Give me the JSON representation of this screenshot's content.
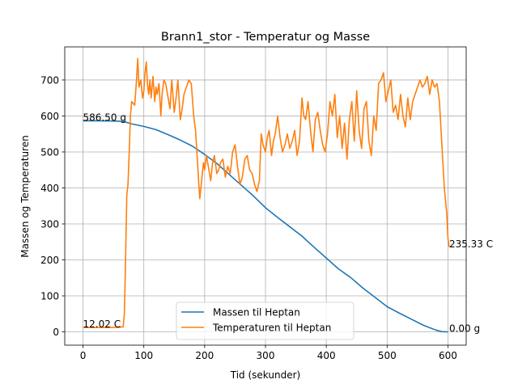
{
  "chart_data": {
    "type": "line",
    "title": "Brann1_stor - Temperatur og Masse",
    "xlabel": "Tid (sekunder)",
    "ylabel": "Massen og Temperaturen",
    "xlim": [
      -30,
      630
    ],
    "ylim": [
      -37,
      792
    ],
    "xticks": [
      0,
      100,
      200,
      300,
      400,
      500,
      600
    ],
    "yticks": [
      0,
      100,
      200,
      300,
      400,
      500,
      600,
      700
    ],
    "grid": true,
    "legend_position": "bottom-center",
    "series": [
      {
        "name": "Massen til Heptan",
        "color": "#1f77b4",
        "x": [
          0,
          20,
          40,
          60,
          70,
          80,
          100,
          120,
          140,
          160,
          180,
          200,
          220,
          240,
          260,
          280,
          300,
          320,
          340,
          360,
          380,
          400,
          420,
          440,
          460,
          480,
          500,
          520,
          540,
          560,
          580,
          590,
          600
        ],
        "y": [
          586.5,
          586.5,
          586.3,
          585.5,
          583,
          578,
          571,
          562,
          548,
          533,
          516,
          493,
          468,
          438,
          408,
          378,
          345,
          318,
          292,
          266,
          235,
          205,
          175,
          151,
          122,
          96,
          70,
          52,
          35,
          18,
          5,
          0.5,
          0
        ]
      },
      {
        "name": "Temperaturen til Heptan",
        "color": "#ff7f0e",
        "x": [
          0,
          20,
          40,
          60,
          66,
          68,
          70,
          72,
          74,
          76,
          78,
          80,
          85,
          88,
          90,
          92,
          95,
          98,
          100,
          102,
          104,
          106,
          108,
          110,
          112,
          115,
          118,
          120,
          122,
          125,
          128,
          130,
          133,
          136,
          140,
          143,
          146,
          150,
          153,
          156,
          160,
          163,
          166,
          170,
          174,
          178,
          182,
          185,
          188,
          190,
          192,
          195,
          198,
          200,
          203,
          206,
          210,
          213,
          216,
          220,
          223,
          226,
          230,
          234,
          238,
          242,
          246,
          250,
          254,
          258,
          262,
          266,
          270,
          274,
          278,
          282,
          286,
          290,
          293,
          296,
          300,
          303,
          306,
          310,
          313,
          316,
          320,
          324,
          328,
          332,
          336,
          340,
          344,
          348,
          352,
          356,
          360,
          363,
          366,
          370,
          374,
          378,
          382,
          386,
          390,
          394,
          398,
          402,
          406,
          410,
          414,
          418,
          422,
          426,
          430,
          434,
          438,
          442,
          446,
          450,
          454,
          458,
          462,
          466,
          470,
          474,
          478,
          482,
          486,
          490,
          494,
          498,
          502,
          506,
          510,
          514,
          518,
          522,
          526,
          530,
          534,
          538,
          542,
          546,
          550,
          554,
          558,
          562,
          566,
          570,
          574,
          578,
          582,
          586,
          590,
          594,
          598,
          600,
          602
        ],
        "y": [
          12.02,
          12.02,
          12.02,
          12.5,
          14,
          50,
          200,
          380,
          410,
          500,
          600,
          640,
          630,
          700,
          760,
          680,
          700,
          650,
          670,
          720,
          750,
          690,
          660,
          700,
          650,
          710,
          640,
          680,
          660,
          690,
          600,
          660,
          700,
          690,
          650,
          620,
          700,
          610,
          650,
          700,
          590,
          620,
          660,
          680,
          700,
          690,
          600,
          560,
          480,
          420,
          370,
          420,
          470,
          450,
          490,
          460,
          420,
          470,
          490,
          440,
          450,
          470,
          480,
          430,
          460,
          440,
          500,
          520,
          460,
          410,
          430,
          480,
          490,
          450,
          440,
          410,
          390,
          420,
          550,
          520,
          500,
          540,
          560,
          490,
          530,
          550,
          600,
          540,
          500,
          520,
          550,
          510,
          530,
          560,
          490,
          530,
          650,
          600,
          590,
          640,
          560,
          500,
          590,
          610,
          560,
          520,
          500,
          550,
          640,
          600,
          660,
          540,
          600,
          510,
          580,
          480,
          590,
          640,
          530,
          670,
          560,
          510,
          620,
          640,
          530,
          490,
          600,
          560,
          690,
          700,
          720,
          640,
          670,
          700,
          610,
          630,
          590,
          660,
          600,
          570,
          650,
          590,
          640,
          660,
          680,
          700,
          680,
          690,
          710,
          660,
          700,
          680,
          690,
          640,
          520,
          400,
          330,
          260,
          235.33
        ]
      }
    ],
    "annotations": [
      {
        "text": "586.50 g",
        "x": 0,
        "y": 586.5
      },
      {
        "text": "12.02 C",
        "x": 0,
        "y": 12.02
      },
      {
        "text": "0.00 g",
        "x": 602,
        "y": 0
      },
      {
        "text": "235.33 C",
        "x": 602,
        "y": 235.33
      }
    ]
  }
}
